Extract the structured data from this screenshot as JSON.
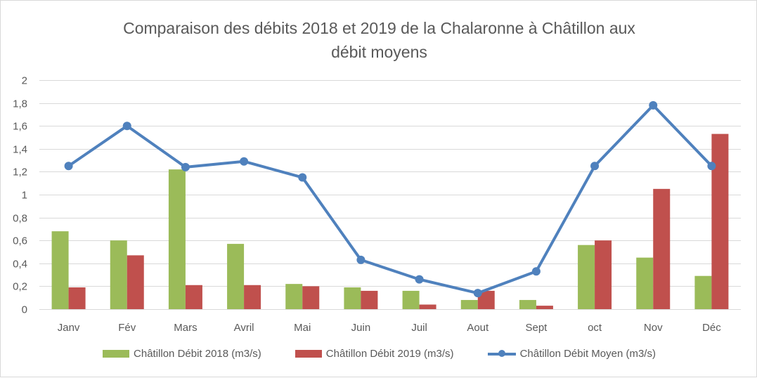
{
  "chart_data": {
    "type": "bar",
    "title": "Comparaison des débits 2018 et 2019 de la Chalaronne à Châtillon aux débit moyens",
    "title_lines": [
      "Comparaison des débits 2018 et 2019 de la Chalaronne à Châtillon aux",
      "débit moyens"
    ],
    "categories": [
      "Janv",
      "Fév",
      "Mars",
      "Avril",
      "Mai",
      "Juin",
      "Juil",
      "Aout",
      "Sept",
      "oct",
      "Nov",
      "Déc"
    ],
    "ylim": [
      0,
      2
    ],
    "yticks": [
      0,
      0.2,
      0.4,
      0.6,
      0.8,
      1,
      1.2,
      1.4,
      1.6,
      1.8,
      2
    ],
    "ytick_labels": [
      "0",
      "0,2",
      "0,4",
      "0,6",
      "0,8",
      "1",
      "1,2",
      "1,4",
      "1,6",
      "1,8",
      "2"
    ],
    "grid": true,
    "legend_position": "bottom",
    "series": [
      {
        "name": "Châtillon Débit 2018 (m3/s)",
        "kind": "bar",
        "color": "#9bbb59",
        "values": [
          0.68,
          0.6,
          1.22,
          0.57,
          0.22,
          0.19,
          0.16,
          0.08,
          0.08,
          0.56,
          0.45,
          0.29
        ]
      },
      {
        "name": "Châtillon Débit 2019 (m3/s)",
        "kind": "bar",
        "color": "#c0504d",
        "values": [
          0.19,
          0.47,
          0.21,
          0.21,
          0.2,
          0.16,
          0.04,
          0.16,
          0.03,
          0.6,
          1.05,
          1.53
        ]
      },
      {
        "name": "Châtillon Débit Moyen (m3/s)",
        "kind": "line",
        "color": "#4f81bd",
        "values": [
          1.25,
          1.6,
          1.24,
          1.29,
          1.15,
          0.43,
          0.26,
          0.14,
          0.33,
          1.25,
          1.78,
          1.25
        ]
      }
    ]
  }
}
